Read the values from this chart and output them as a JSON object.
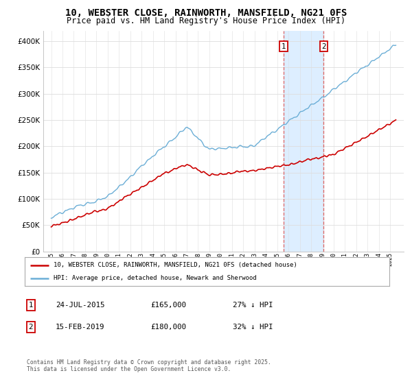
{
  "title": "10, WEBSTER CLOSE, RAINWORTH, MANSFIELD, NG21 0FS",
  "subtitle": "Price paid vs. HM Land Registry's House Price Index (HPI)",
  "title_fontsize": 10,
  "subtitle_fontsize": 8.5,
  "hpi_color": "#6baed6",
  "price_color": "#cc0000",
  "marker1_x": 2015.56,
  "marker2_x": 2019.12,
  "marker1_label": "1",
  "marker2_label": "2",
  "marker1_date": "24-JUL-2015",
  "marker1_price": "£165,000",
  "marker1_below": "27% ↓ HPI",
  "marker2_date": "15-FEB-2019",
  "marker2_price": "£180,000",
  "marker2_below": "32% ↓ HPI",
  "legend_line1": "10, WEBSTER CLOSE, RAINWORTH, MANSFIELD, NG21 0FS (detached house)",
  "legend_line2": "HPI: Average price, detached house, Newark and Sherwood",
  "footer": "Contains HM Land Registry data © Crown copyright and database right 2025.\nThis data is licensed under the Open Government Licence v3.0.",
  "ylim_max": 420000,
  "background_color": "#ffffff",
  "grid_color": "#dddddd",
  "shaded_color": "#ddeeff"
}
